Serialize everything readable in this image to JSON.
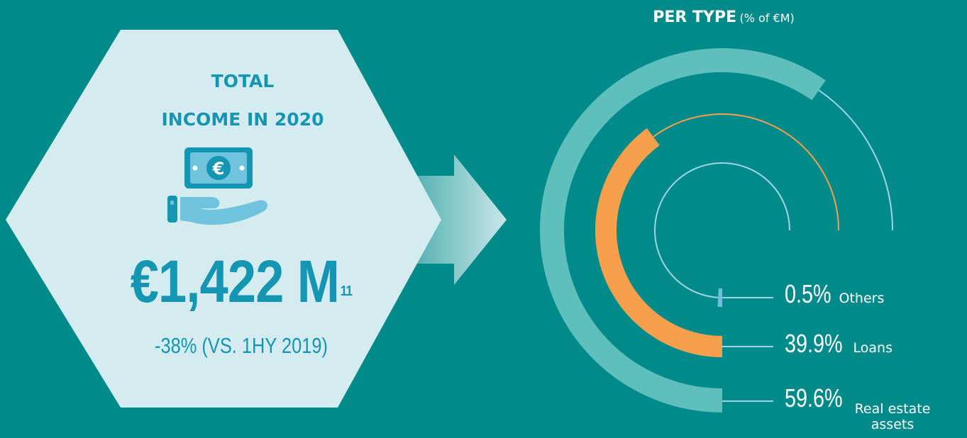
{
  "left_panel": {
    "title_line1": "TOTAL",
    "title_line2": "INCOME IN 2020",
    "value_main": "€1,422 M",
    "value_footnote": "11",
    "change_text": "-38% (VS. 1HY 2019)"
  },
  "icons": {
    "hand_money": "hand-holding-euro-banknote-icon"
  },
  "colors": {
    "background": "#008a8a",
    "hexagon": "#d4ecef",
    "title_text": "#1496b2",
    "real_estate": "#5ebfbc",
    "loans": "#f6a04e",
    "others": "#6fbfd8"
  },
  "chart_data": {
    "type": "radial-bar",
    "title": "PER TYPE",
    "unit": "(% of €M)",
    "categories": [
      "Others",
      "Loans",
      "Real estate assets"
    ],
    "values": [
      0.5,
      39.9,
      59.6
    ],
    "labels": [
      "0.5%",
      "39.9%",
      "59.6%"
    ]
  }
}
